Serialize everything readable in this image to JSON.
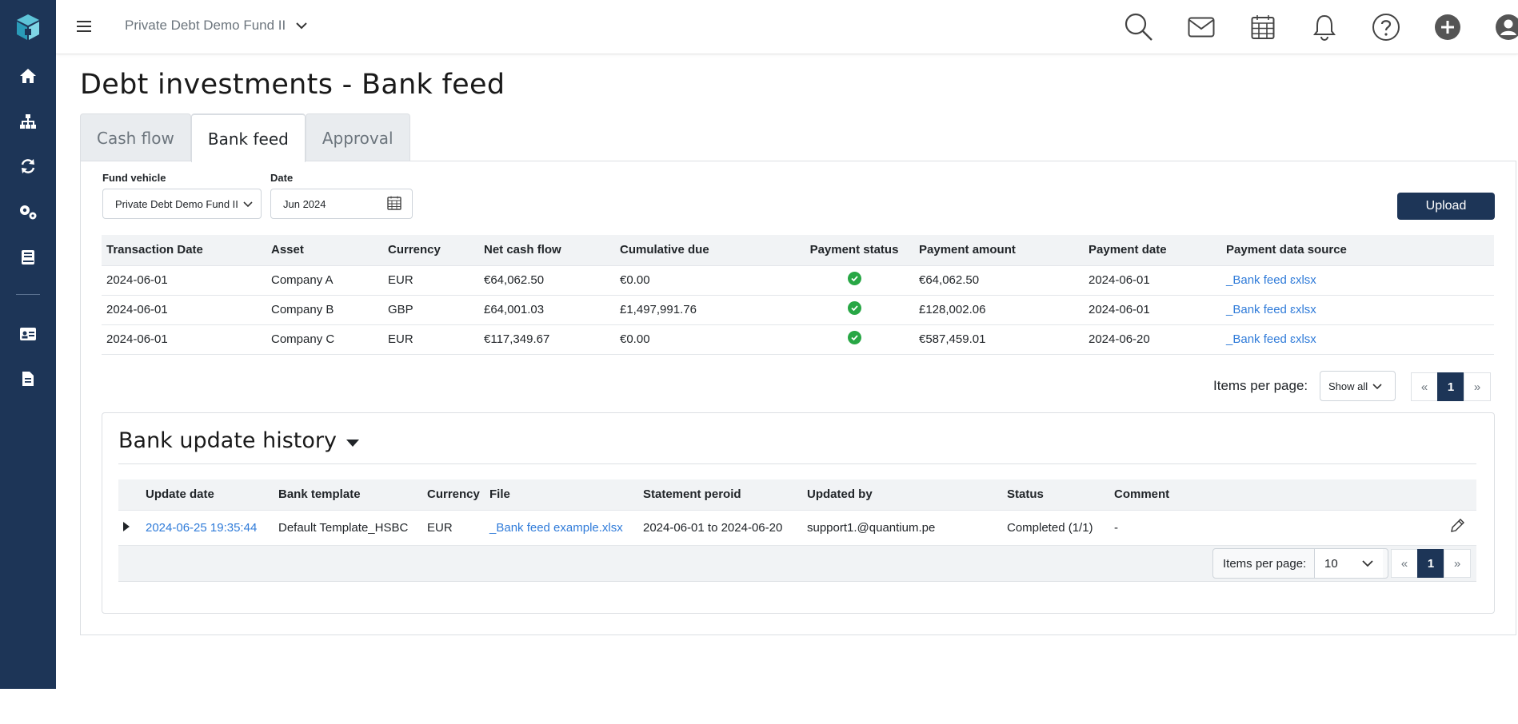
{
  "header": {
    "fund_name": "Private Debt Demo Fund II"
  },
  "page": {
    "title": "Debt investments - Bank feed"
  },
  "tabs": [
    {
      "label": "Cash flow"
    },
    {
      "label": "Bank feed"
    },
    {
      "label": "Approval"
    }
  ],
  "filters": {
    "fund_vehicle_label": "Fund vehicle",
    "fund_vehicle_value": "Private Debt Demo Fund II",
    "date_label": "Date",
    "date_value": "Jun 2024"
  },
  "upload_label": "Upload",
  "transactions": {
    "columns": [
      "Transaction Date",
      "Asset",
      "Currency",
      "Net cash flow",
      "Cumulative due",
      "Payment status",
      "Payment amount",
      "Payment date",
      "Payment data source"
    ],
    "rows": [
      {
        "transaction_date": "2024-06-01",
        "asset": "Company A",
        "currency": "EUR",
        "net_cash_flow": "€64,062.50",
        "cumulative_due": "€0.00",
        "payment_amount": "€64,062.50",
        "payment_date": "2024-06-01",
        "source": "_Bank feed ɛxlsx"
      },
      {
        "transaction_date": "2024-06-01",
        "asset": "Company B",
        "currency": "GBP",
        "net_cash_flow": "£64,001.03",
        "cumulative_due": "£1,497,991.76",
        "payment_amount": "£128,002.06",
        "payment_date": "2024-06-01",
        "source": "_Bank feed ɛxlsx"
      },
      {
        "transaction_date": "2024-06-01",
        "asset": "Company C",
        "currency": "EUR",
        "net_cash_flow": "€117,349.67",
        "cumulative_due": "€0.00",
        "payment_amount": "€587,459.01",
        "payment_date": "2024-06-20",
        "source": "_Bank feed ɛxlsx"
      }
    ],
    "items_per_page_label": "Items per page:",
    "items_per_page_value": "Show all",
    "pager": {
      "prev": "«",
      "page": "1",
      "next": "»"
    }
  },
  "history": {
    "title": "Bank update history",
    "columns": [
      "Update date",
      "Bank template",
      "Currency",
      "File",
      "Statement peroid",
      "Updated by",
      "Status",
      "Comment"
    ],
    "rows": [
      {
        "update_date": "2024-06-25 19:35:44",
        "bank_template": "Default Template_HSBC",
        "currency": "EUR",
        "file": "_Bank feed example.xlsx",
        "statement_period": "2024-06-01 to 2024-06-20",
        "updated_by": "support1.@quantium.pe",
        "status": "Completed (1/1)",
        "comment": "-"
      }
    ],
    "items_per_page_label": "Items per page:",
    "items_per_page_value": "10",
    "pager": {
      "prev": "«",
      "page": "1",
      "next": "»"
    }
  },
  "icons": {
    "sidebar": [
      "logo-icon",
      "home-icon",
      "sitemap-icon",
      "refresh-icon",
      "cogs-icon",
      "book-icon",
      "id-card-icon",
      "document-icon"
    ],
    "topbar": [
      "search-icon",
      "mail-icon",
      "calendar-icon",
      "bell-icon",
      "help-icon",
      "add-icon",
      "user-icon"
    ]
  },
  "colors": {
    "sidebar": "#1d3557",
    "accent": "#2f7bd9",
    "success": "#28a745"
  }
}
